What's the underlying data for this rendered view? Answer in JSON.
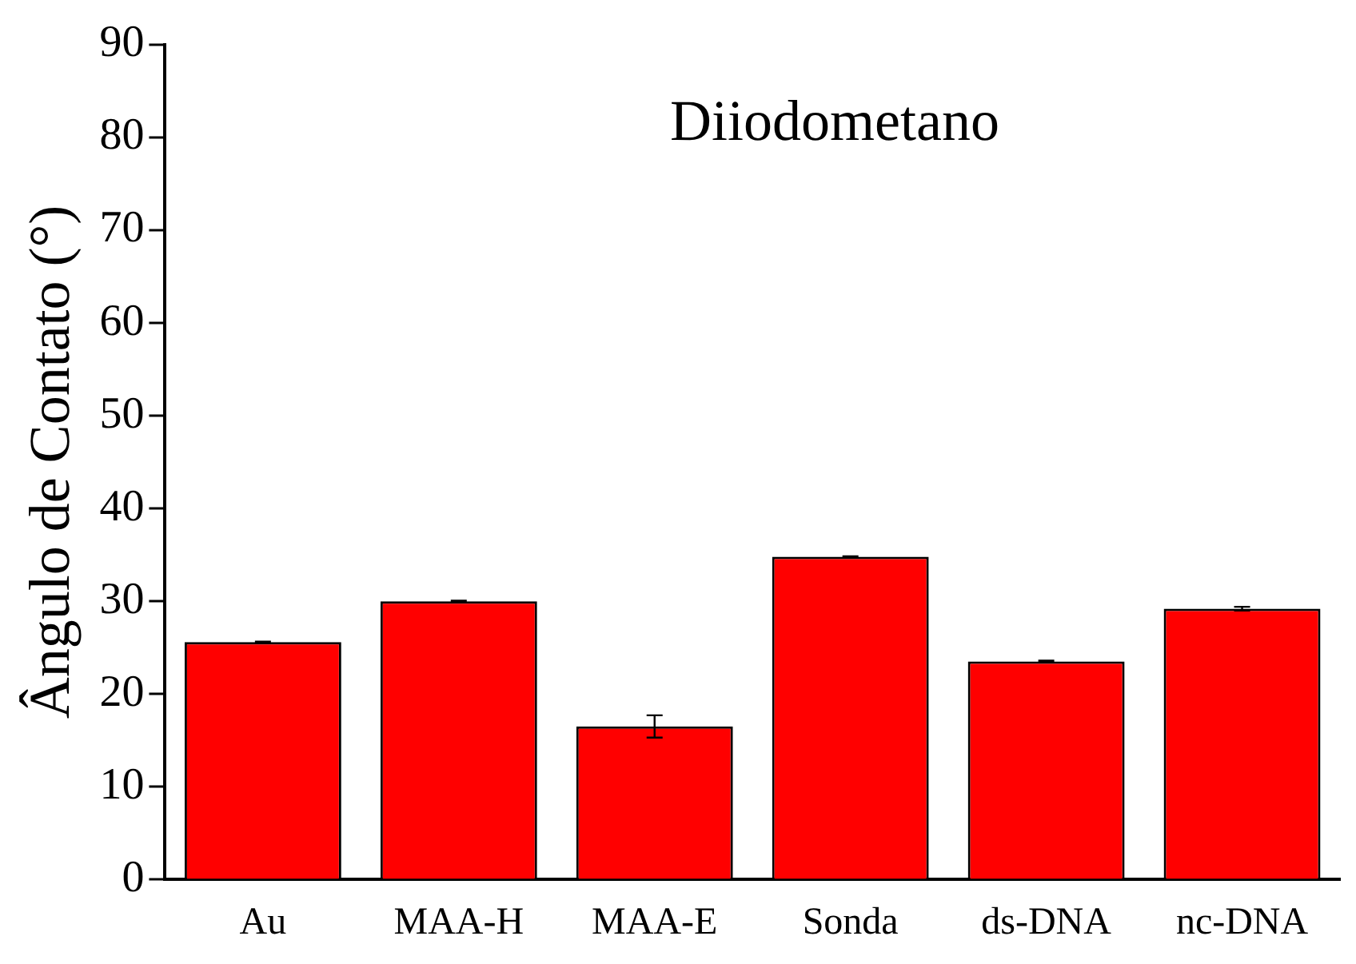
{
  "chart_data": {
    "type": "bar",
    "title": "Diiodometano",
    "ylabel": "Ângulo de Contato (°)",
    "categories": [
      "Au",
      "MAA-H",
      "MAA-E",
      "Sonda",
      "ds-DNA",
      "nc-DNA"
    ],
    "values": [
      25.6,
      30.0,
      16.5,
      34.8,
      23.5,
      29.2
    ],
    "errors": [
      0.05,
      0.05,
      1.2,
      0.05,
      0.1,
      0.2
    ],
    "color": "#ff0000",
    "ylim": [
      0,
      90
    ],
    "yticks": [
      0,
      10,
      20,
      30,
      40,
      50,
      60,
      70,
      80,
      90
    ],
    "grid": false,
    "legend": false
  }
}
